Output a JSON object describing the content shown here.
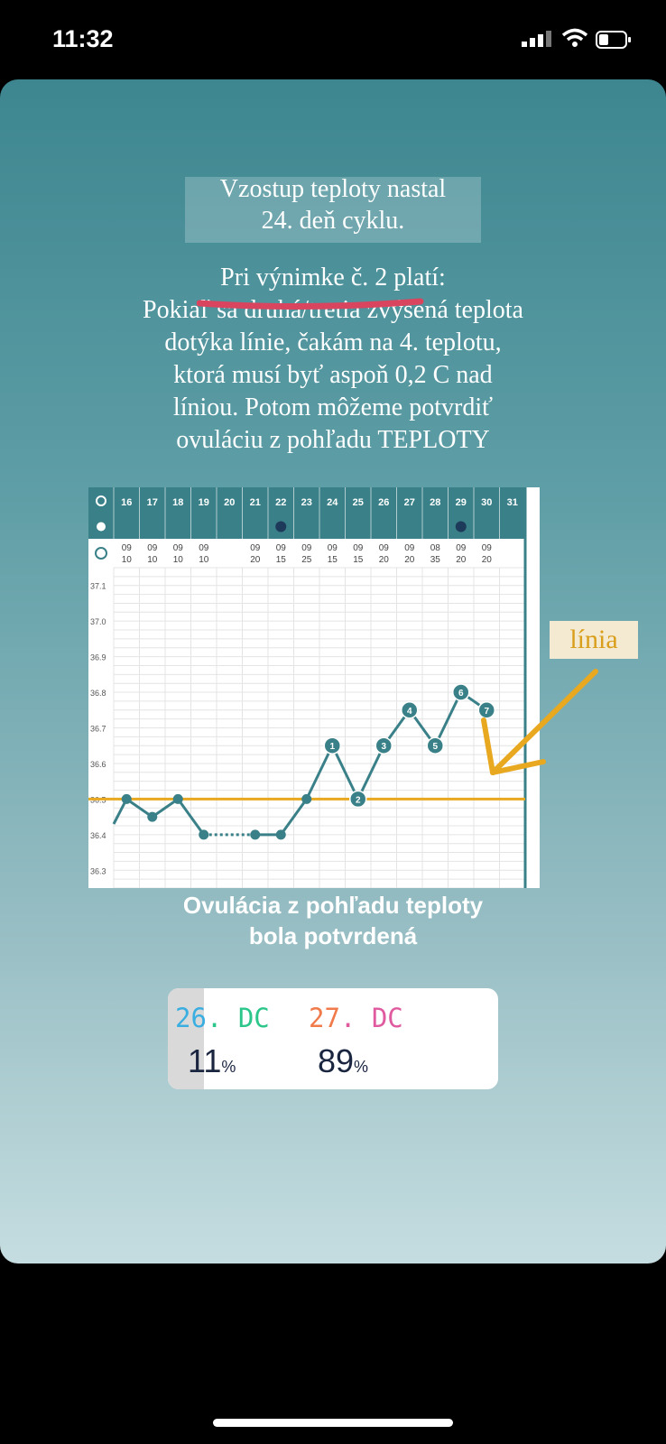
{
  "status_bar": {
    "time": "11:32"
  },
  "story": {
    "title_lines": [
      "Vzostup teploty nastal",
      "24. deň cyklu."
    ],
    "paragraph_lines": [
      "Pri výnimke č. 2 platí:",
      "Pokiaľ sa druhá/tretia zvýšená teplota",
      "dotýka línie, čakám na 4. teplotu,",
      "ktorá musí byť aspoň 0,2 C nad",
      "líniou. Potom môžeme potvrdiť",
      "ovuláciu z pohľadu TEPLOTY"
    ],
    "line_annotation": "línia",
    "conclusion_lines": [
      "Ovulácia z pohľadu teploty",
      "bola potvrdená"
    ],
    "poll": {
      "options": [
        {
          "label_number": "26",
          "label_suffix": ". DC",
          "percent": "11",
          "percent_sign": "%",
          "fraction": 0.11
        },
        {
          "label_number": "27",
          "label_suffix": ". DC",
          "percent": "89",
          "percent_sign": "%",
          "fraction": 0.89
        }
      ]
    }
  },
  "chart_data": {
    "type": "line",
    "x": [
      16,
      17,
      18,
      19,
      20,
      21,
      22,
      23,
      24,
      25,
      26,
      27,
      28,
      29,
      30,
      31
    ],
    "times": [
      [
        "09",
        "10"
      ],
      [
        "09",
        "10"
      ],
      [
        "09",
        "10"
      ],
      [
        "09",
        "10"
      ],
      [
        "",
        ""
      ],
      [
        "09",
        "20"
      ],
      [
        "09",
        "15"
      ],
      [
        "09",
        "25"
      ],
      [
        "09",
        "15"
      ],
      [
        "09",
        "15"
      ],
      [
        "09",
        "20"
      ],
      [
        "09",
        "20"
      ],
      [
        "08",
        "35"
      ],
      [
        "09",
        "20"
      ],
      [
        "09",
        "20"
      ],
      [
        "",
        ""
      ]
    ],
    "y": [
      36.5,
      36.45,
      36.5,
      36.4,
      null,
      36.4,
      36.4,
      36.5,
      36.65,
      36.5,
      36.65,
      36.75,
      36.65,
      36.8,
      36.75,
      null
    ],
    "point_labels": [
      "",
      "",
      "",
      "",
      "",
      "",
      "",
      "",
      "1",
      "2",
      "3",
      "4",
      "5",
      "6",
      "7",
      ""
    ],
    "y_ticks": [
      "37.1",
      "37.0",
      "36.9",
      "36.8",
      "36.7",
      "36.6",
      "36.5",
      "36.4",
      "36.3"
    ],
    "coverline": 36.5,
    "moon_days": [
      22,
      29
    ],
    "ylim": [
      36.25,
      37.15
    ],
    "colors": {
      "line": "#3a8088",
      "coverline": "#e8a820",
      "header": "#3a8088"
    }
  }
}
